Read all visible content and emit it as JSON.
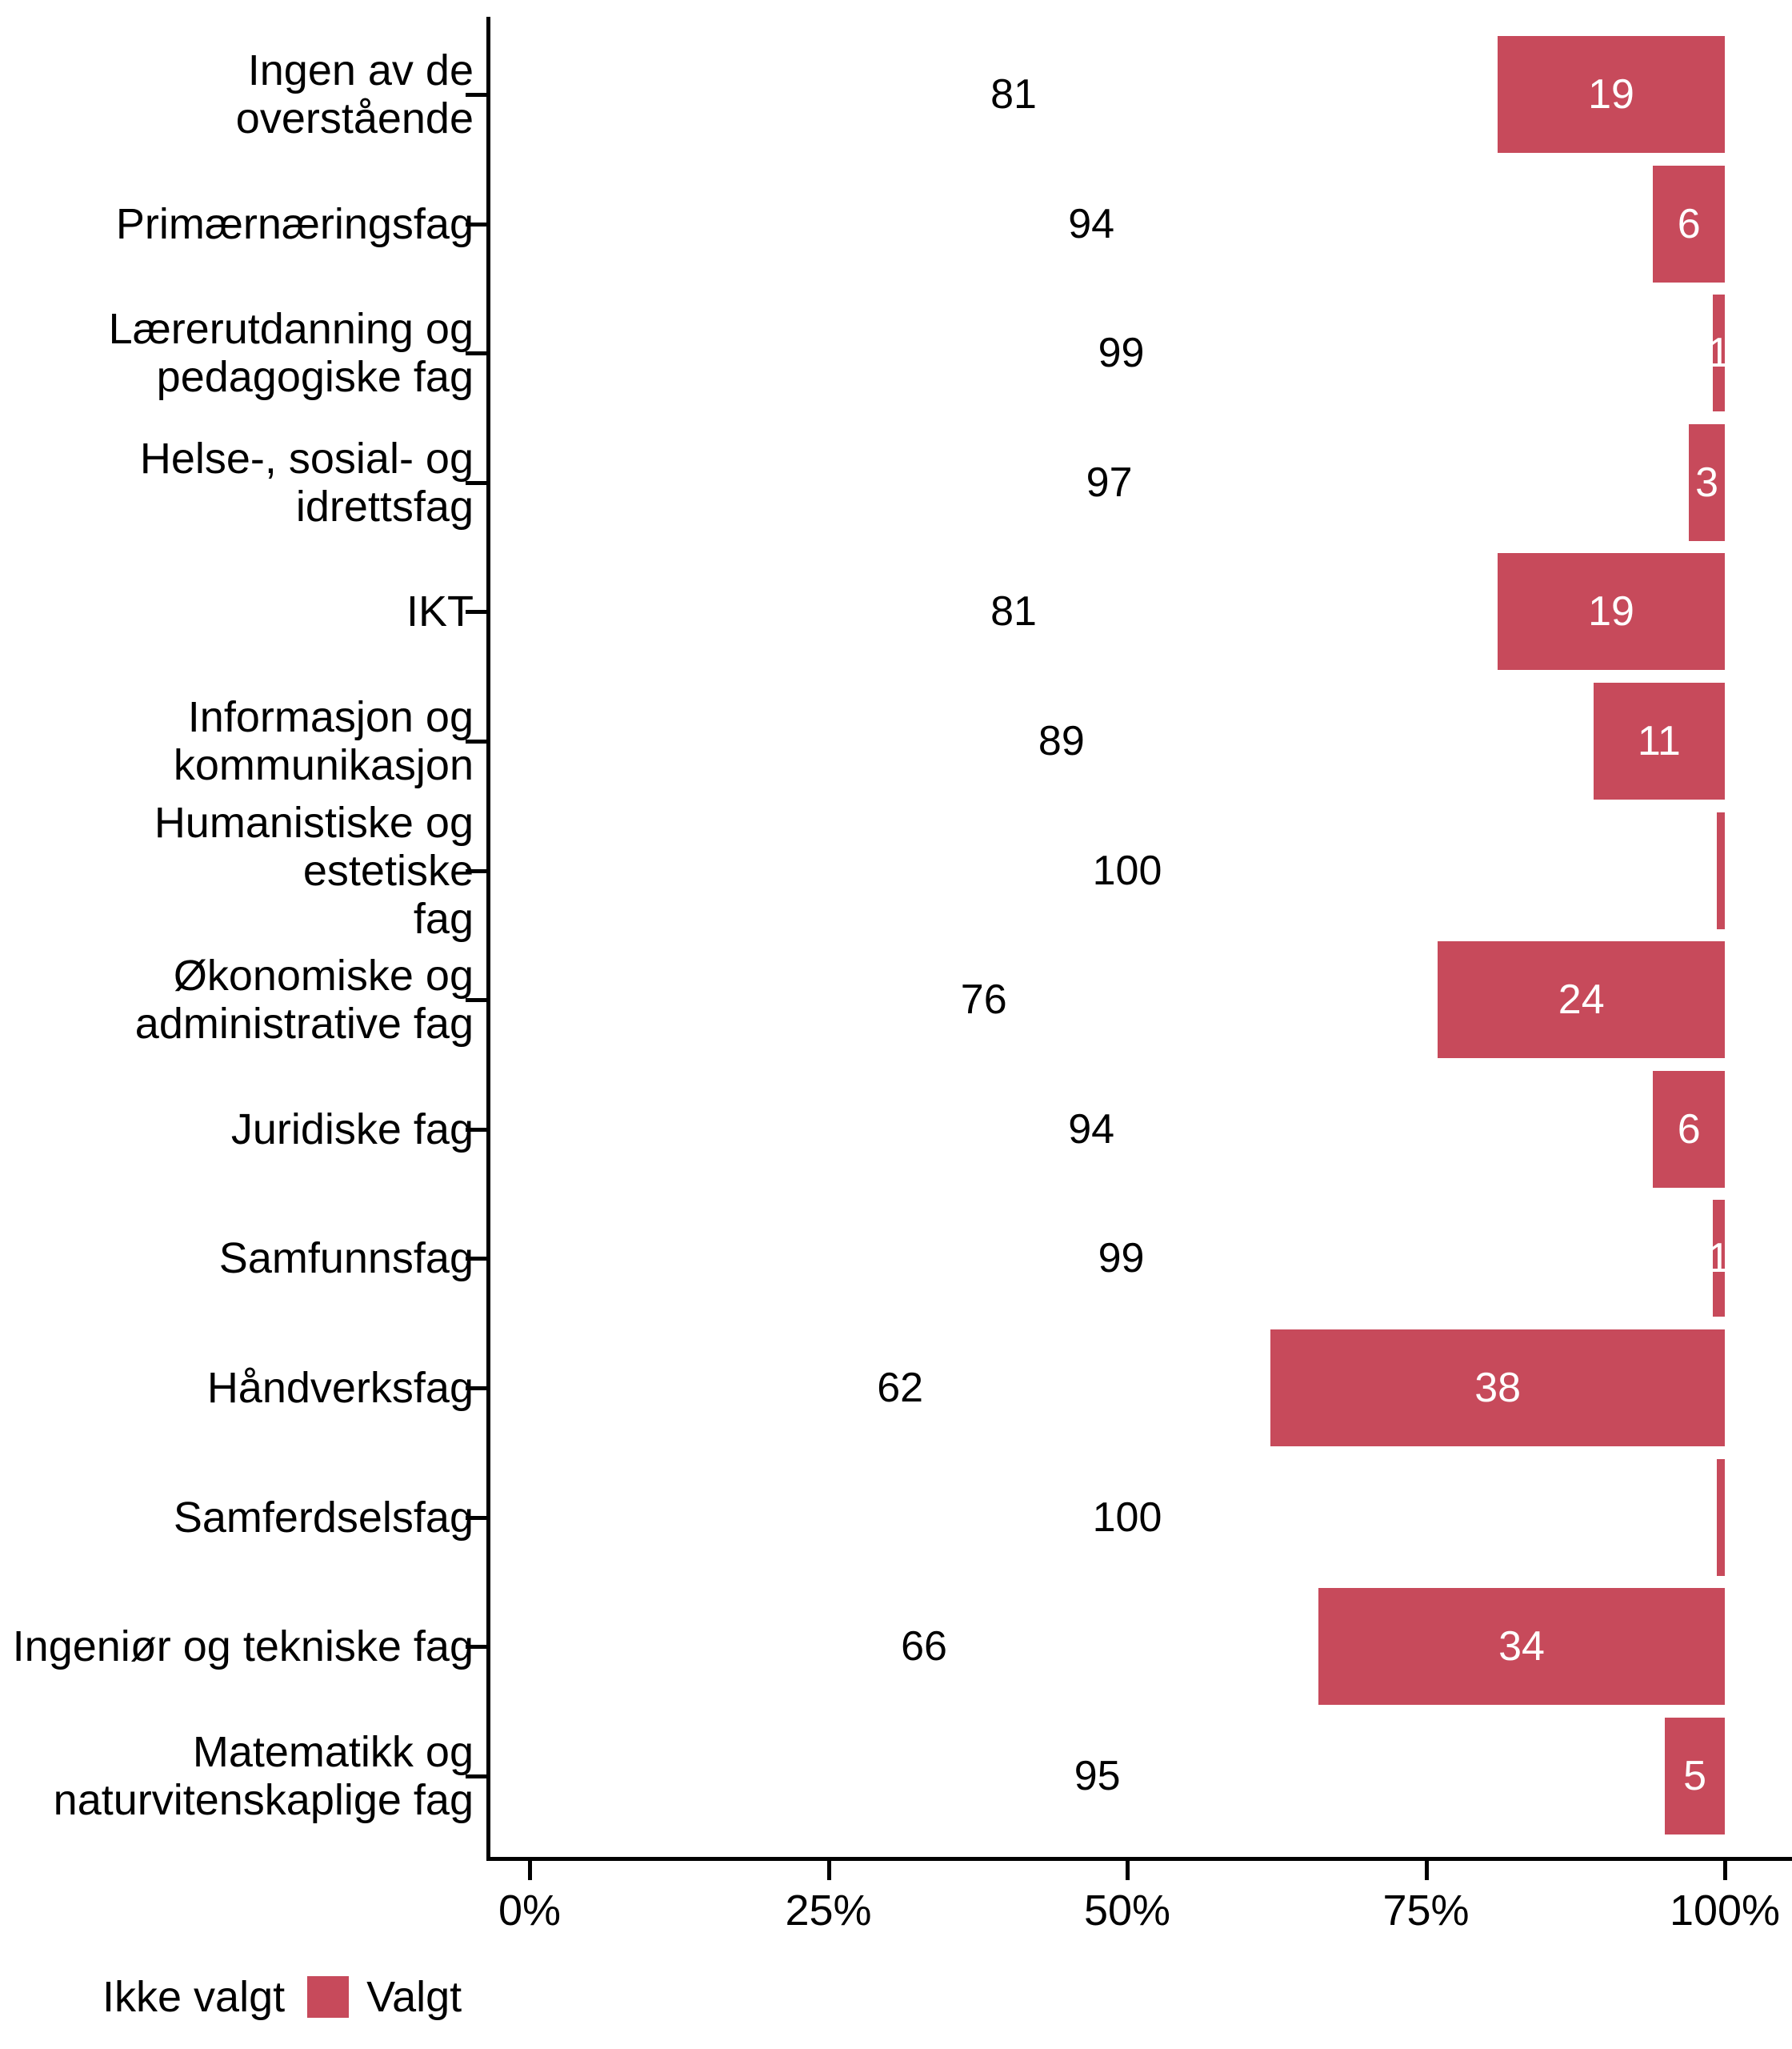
{
  "chart_data": {
    "type": "bar",
    "orientation": "horizontal",
    "stacked": true,
    "unit": "percent",
    "title": "",
    "categories": [
      "Ingen av de overstående",
      "Primærnæringsfag",
      "Lærerutdanning og\npedagogiske fag",
      "Helse-, sosial- og\nidrettsfag",
      "IKT",
      "Informasjon og\nkommunikasjon",
      "Humanistiske og estetiske\nfag",
      "Økonomiske og\nadministrative fag",
      "Juridiske fag",
      "Samfunnsfag",
      "Håndverksfag",
      "Samferdselsfag",
      "Ingeniør og tekniske fag",
      "Matematikk og\nnaturvitenskaplige fag"
    ],
    "series": [
      {
        "name": "Ikke valgt",
        "color": "#FFFFFF",
        "label_color": "#000000",
        "values": [
          81,
          94,
          99,
          97,
          81,
          89,
          100,
          76,
          94,
          99,
          62,
          100,
          66,
          95
        ]
      },
      {
        "name": "Valgt",
        "color": "#C74A5B",
        "label_color": "#FFFFFF",
        "values": [
          19,
          6,
          1,
          3,
          19,
          11,
          0,
          24,
          6,
          1,
          38,
          0,
          34,
          5
        ]
      }
    ],
    "x_axis": {
      "ticks": [
        "0%",
        "25%",
        "50%",
        "75%",
        "100%"
      ],
      "tick_values": [
        0,
        25,
        50,
        75,
        100
      ],
      "range": [
        0,
        100
      ],
      "grid": false
    },
    "legend": {
      "position": "bottom-left",
      "items": [
        {
          "label": "Ikke valgt",
          "color": "#FFFFFF"
        },
        {
          "label": "Valgt",
          "color": "#C74A5B"
        }
      ]
    },
    "colors": {
      "axis": "#000000",
      "text": "#000000",
      "background": "#FFFFFF"
    }
  }
}
